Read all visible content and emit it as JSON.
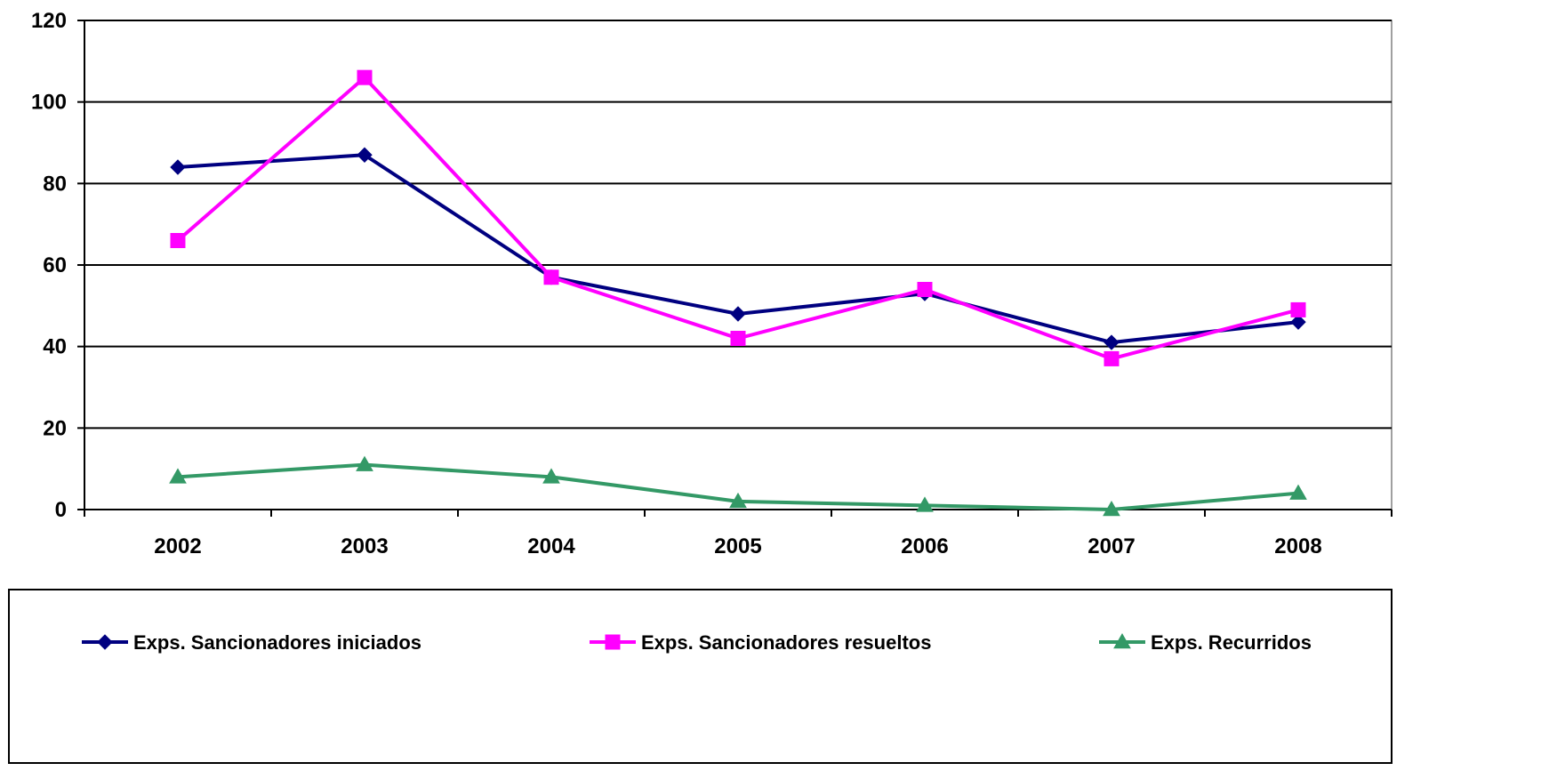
{
  "chart_data": {
    "type": "line",
    "title": "",
    "xlabel": "",
    "ylabel": "",
    "categories": [
      "2002",
      "2003",
      "2004",
      "2005",
      "2006",
      "2007",
      "2008"
    ],
    "ylim": [
      0,
      120
    ],
    "yticks": [
      0,
      20,
      40,
      60,
      80,
      100,
      120
    ],
    "grid": true,
    "legend_position": "bottom",
    "series": [
      {
        "name": "Exps. Sancionadores iniciados",
        "values": [
          84,
          87,
          57,
          48,
          53,
          41,
          46
        ],
        "color": "#000080",
        "marker": "diamond"
      },
      {
        "name": "Exps. Sancionadores resueltos",
        "values": [
          66,
          106,
          57,
          42,
          54,
          37,
          49
        ],
        "color": "#FF00FF",
        "marker": "square"
      },
      {
        "name": "Exps. Recurridos",
        "values": [
          8,
          11,
          8,
          2,
          1,
          0,
          4
        ],
        "color": "#339966",
        "marker": "triangle"
      }
    ]
  }
}
